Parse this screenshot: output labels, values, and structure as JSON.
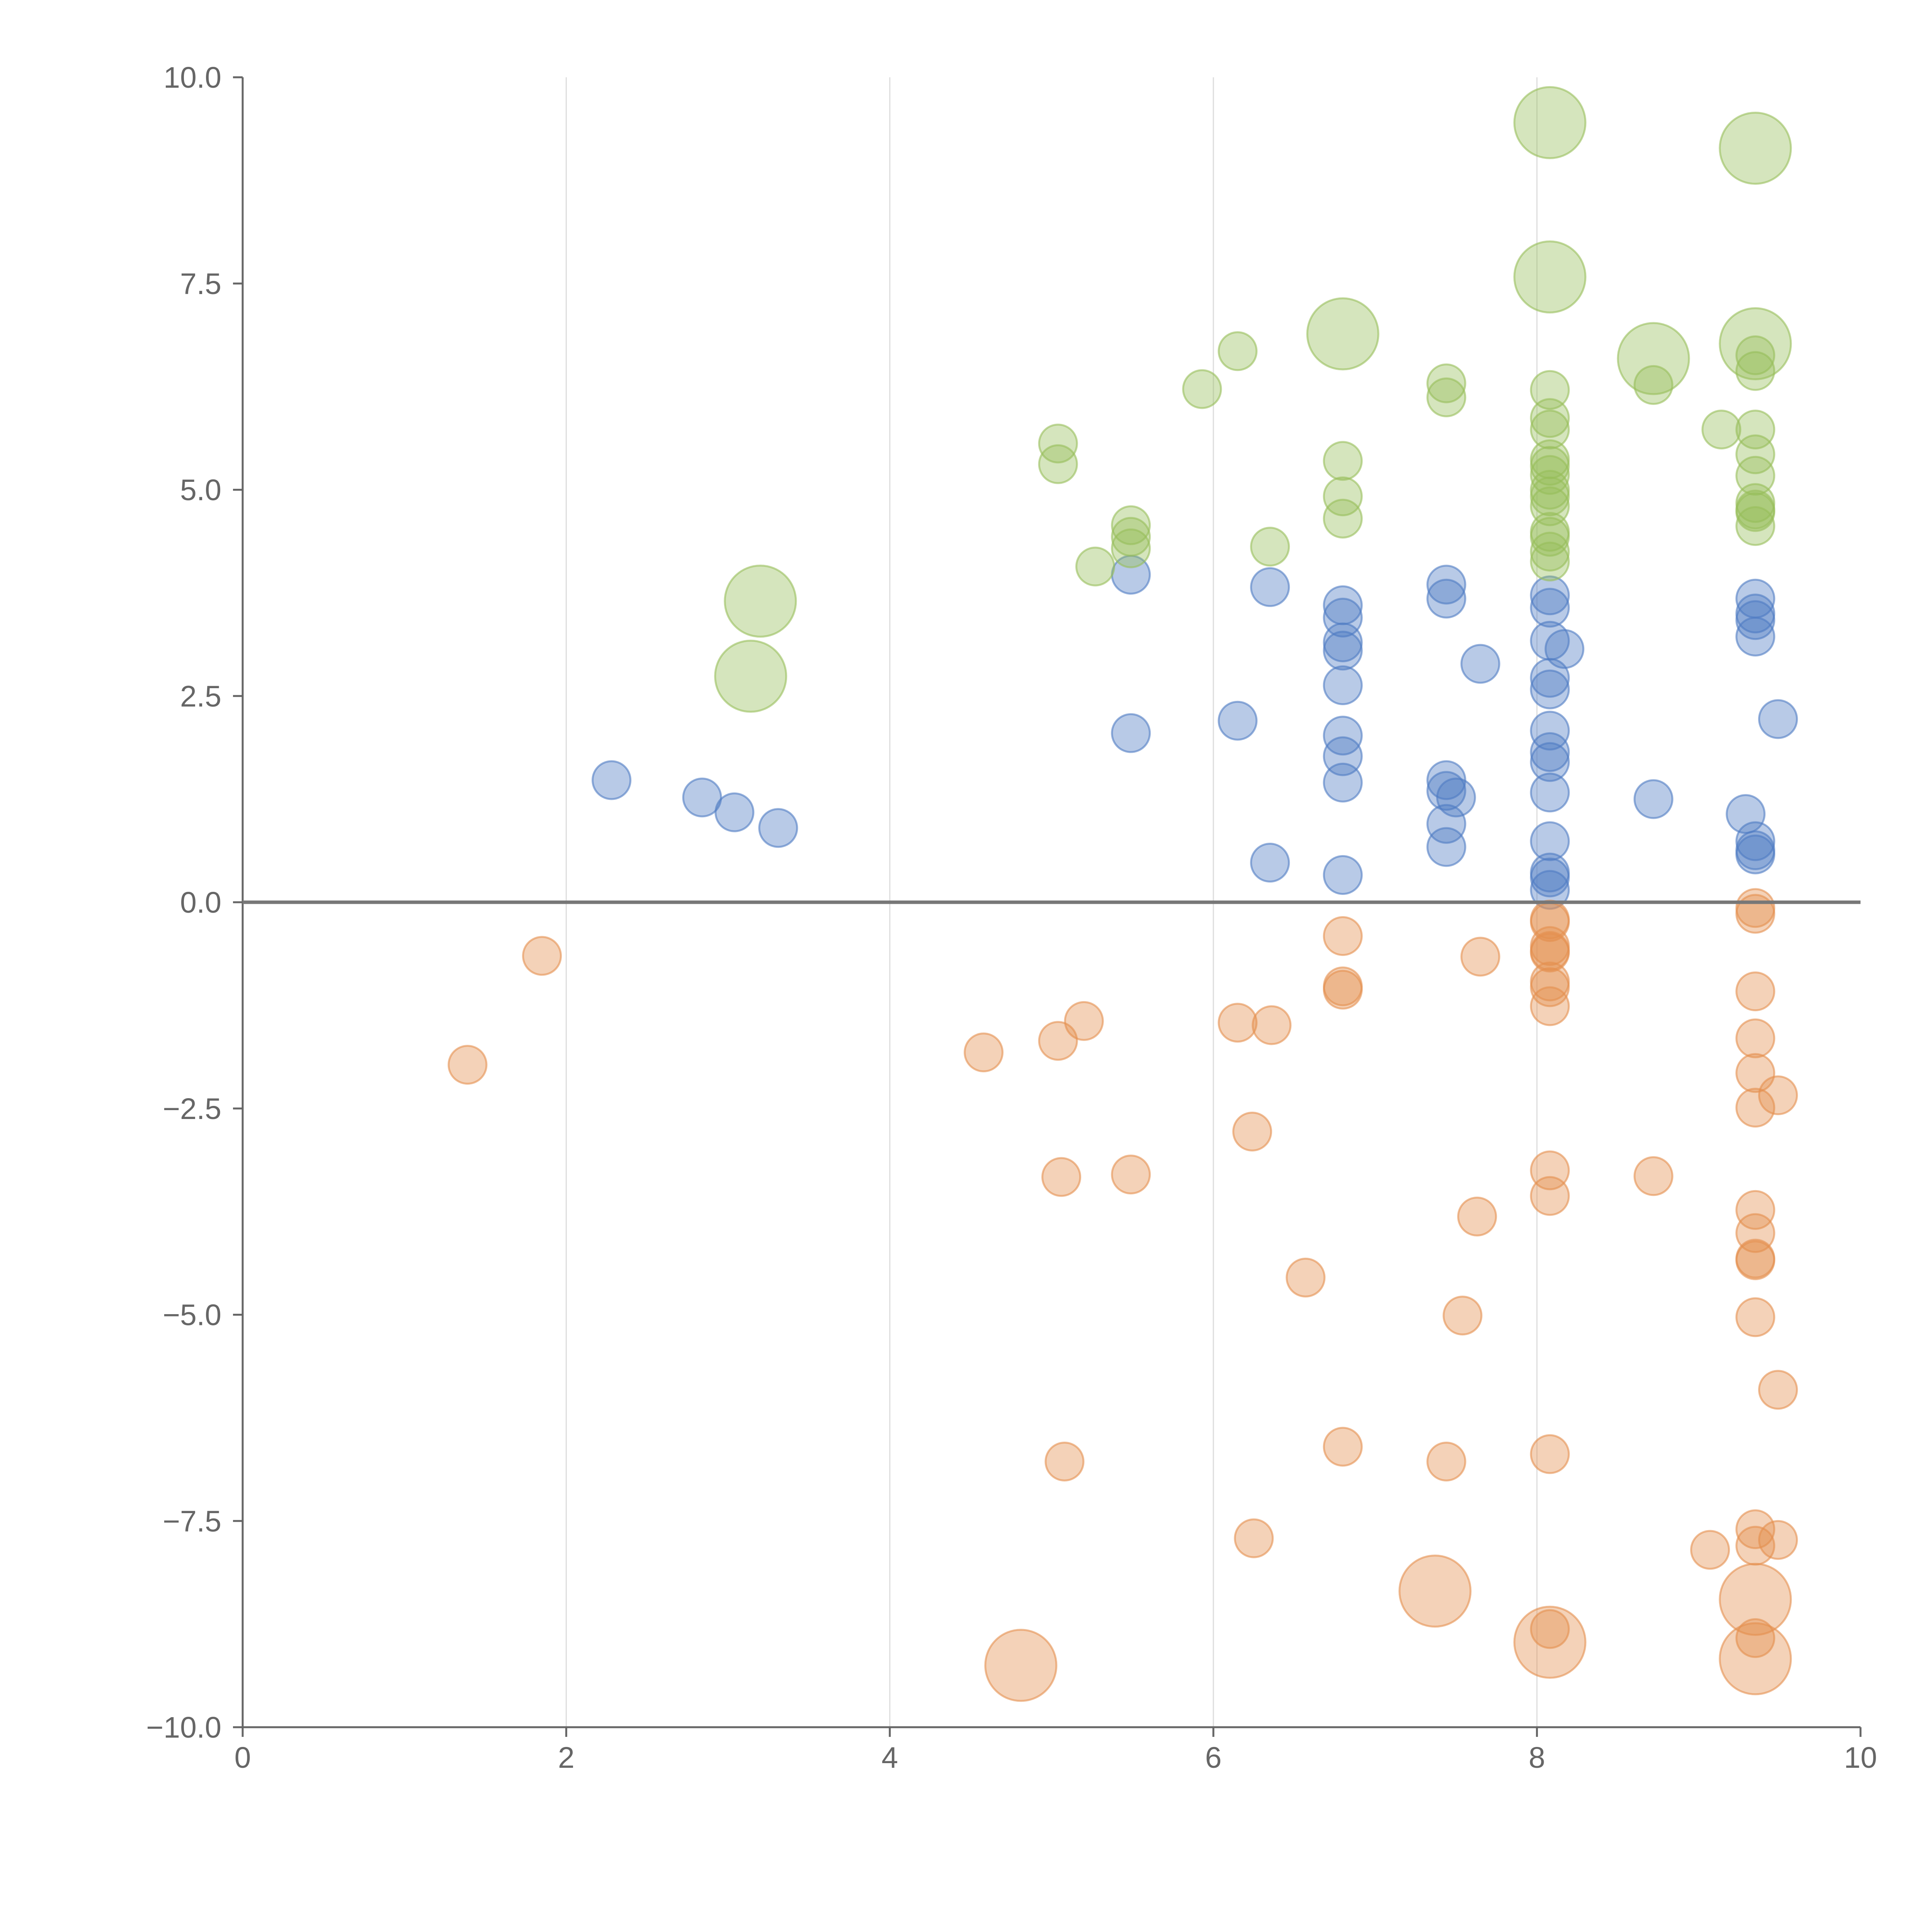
{
  "chart_data": {
    "type": "scatter",
    "title": "",
    "xlabel": "",
    "ylabel": "",
    "xlim": [
      0,
      10
    ],
    "ylim": [
      -10,
      10
    ],
    "x_ticks": [
      "0",
      "2",
      "4",
      "6",
      "8",
      "10"
    ],
    "y_ticks": [
      "10.0",
      "7.5",
      "5.0",
      "2.5",
      "0.0",
      "−2.5",
      "−5.0",
      "−7.5",
      "−10.0"
    ],
    "x_tick_values": [
      0,
      2,
      4,
      6,
      8,
      10
    ],
    "y_tick_values": [
      10,
      7.5,
      5,
      2.5,
      0,
      -2.5,
      -5,
      -7.5,
      -10
    ],
    "vertical_grid": true,
    "horizontal_grid": false,
    "reference_line_y": 0,
    "legend": "none",
    "colors": {
      "blue": "#4E7BC3",
      "orange": "#E48F4E",
      "green": "#97BE5A",
      "axis": "#666666",
      "grid": "#DDDDDD",
      "zero_line": "#777777"
    },
    "series": [
      {
        "name": "blue",
        "size": "small",
        "points": [
          [
            2.28,
            1.48
          ],
          [
            2.84,
            1.27
          ],
          [
            3.04,
            1.09
          ],
          [
            3.31,
            0.9
          ],
          [
            5.49,
            3.97
          ],
          [
            5.49,
            2.05
          ],
          [
            6.15,
            2.2
          ],
          [
            6.35,
            3.82
          ],
          [
            6.35,
            0.48
          ],
          [
            6.8,
            3.6
          ],
          [
            6.8,
            3.45
          ],
          [
            6.8,
            3.15
          ],
          [
            6.8,
            3.05
          ],
          [
            6.8,
            2.63
          ],
          [
            6.8,
            2.02
          ],
          [
            6.8,
            1.77
          ],
          [
            6.8,
            1.45
          ],
          [
            6.8,
            0.33
          ],
          [
            7.44,
            3.85
          ],
          [
            7.44,
            3.68
          ],
          [
            7.44,
            1.48
          ],
          [
            7.44,
            1.35
          ],
          [
            7.5,
            1.27
          ],
          [
            7.44,
            0.95
          ],
          [
            7.44,
            0.67
          ],
          [
            7.65,
            2.89
          ],
          [
            8.08,
            3.72
          ],
          [
            8.08,
            3.57
          ],
          [
            8.08,
            3.17
          ],
          [
            8.17,
            3.07
          ],
          [
            8.08,
            2.72
          ],
          [
            8.08,
            2.58
          ],
          [
            8.08,
            2.08
          ],
          [
            8.08,
            1.82
          ],
          [
            8.08,
            1.7
          ],
          [
            8.08,
            1.33
          ],
          [
            8.08,
            0.74
          ],
          [
            8.08,
            0.36
          ],
          [
            8.08,
            0.3
          ],
          [
            8.08,
            0.15
          ],
          [
            8.72,
            1.25
          ],
          [
            9.29,
            1.07
          ],
          [
            9.35,
            3.68
          ],
          [
            9.35,
            3.5
          ],
          [
            9.35,
            3.42
          ],
          [
            9.35,
            3.22
          ],
          [
            9.35,
            0.74
          ],
          [
            9.35,
            0.63
          ],
          [
            9.35,
            0.58
          ],
          [
            9.49,
            2.22
          ]
        ]
      },
      {
        "name": "orange",
        "size": "small",
        "points": [
          [
            1.39,
            -1.97
          ],
          [
            1.85,
            -0.65
          ],
          [
            4.58,
            -1.82
          ],
          [
            5.04,
            -1.68
          ],
          [
            5.2,
            -1.44
          ],
          [
            5.06,
            -3.33
          ],
          [
            5.08,
            -6.78
          ],
          [
            5.49,
            -3.3
          ],
          [
            6.15,
            -1.46
          ],
          [
            6.36,
            -1.49
          ],
          [
            6.24,
            -2.78
          ],
          [
            6.57,
            -4.55
          ],
          [
            6.25,
            -7.71
          ],
          [
            6.8,
            -0.41
          ],
          [
            6.8,
            -1.02
          ],
          [
            6.8,
            -1.06
          ],
          [
            6.8,
            -6.6
          ],
          [
            7.44,
            -6.78
          ],
          [
            7.54,
            -5.01
          ],
          [
            7.63,
            -3.81
          ],
          [
            7.65,
            -0.66
          ],
          [
            8.08,
            -0.21
          ],
          [
            8.08,
            -0.24
          ],
          [
            8.08,
            -0.53
          ],
          [
            8.08,
            -0.59
          ],
          [
            8.08,
            -0.61
          ],
          [
            8.08,
            -0.96
          ],
          [
            8.08,
            -1.03
          ],
          [
            8.08,
            -1.26
          ],
          [
            8.08,
            -3.25
          ],
          [
            8.08,
            -3.56
          ],
          [
            8.08,
            -6.69
          ],
          [
            8.08,
            -8.81
          ],
          [
            8.72,
            -3.32
          ],
          [
            9.07,
            -7.85
          ],
          [
            9.35,
            -0.07
          ],
          [
            9.35,
            -0.14
          ],
          [
            9.35,
            -1.08
          ],
          [
            9.35,
            -1.65
          ],
          [
            9.35,
            -2.07
          ],
          [
            9.35,
            -2.49
          ],
          [
            9.35,
            -3.73
          ],
          [
            9.35,
            -4.01
          ],
          [
            9.35,
            -4.32
          ],
          [
            9.35,
            -4.34
          ],
          [
            9.35,
            -5.03
          ],
          [
            9.35,
            -7.6
          ],
          [
            9.35,
            -7.8
          ],
          [
            9.35,
            -8.92
          ],
          [
            9.49,
            -2.34
          ],
          [
            9.49,
            -5.91
          ],
          [
            9.49,
            -7.73
          ]
        ]
      },
      {
        "name": "green",
        "size": "small",
        "points": [
          [
            5.04,
            5.56
          ],
          [
            5.04,
            5.31
          ],
          [
            5.27,
            4.07
          ],
          [
            5.49,
            4.57
          ],
          [
            5.49,
            4.43
          ],
          [
            5.49,
            4.29
          ],
          [
            5.93,
            6.22
          ],
          [
            6.15,
            6.68
          ],
          [
            6.35,
            4.31
          ],
          [
            6.8,
            5.35
          ],
          [
            6.8,
            4.92
          ],
          [
            6.8,
            4.65
          ],
          [
            7.44,
            6.29
          ],
          [
            7.44,
            6.12
          ],
          [
            8.08,
            6.21
          ],
          [
            8.08,
            5.87
          ],
          [
            8.08,
            5.73
          ],
          [
            8.08,
            5.37
          ],
          [
            8.08,
            5.29
          ],
          [
            8.08,
            5.18
          ],
          [
            8.08,
            5.0
          ],
          [
            8.08,
            4.92
          ],
          [
            8.08,
            4.8
          ],
          [
            8.08,
            4.49
          ],
          [
            8.08,
            4.43
          ],
          [
            8.08,
            4.25
          ],
          [
            8.08,
            4.13
          ],
          [
            8.72,
            6.27
          ],
          [
            9.14,
            5.73
          ],
          [
            9.35,
            6.63
          ],
          [
            9.35,
            6.44
          ],
          [
            9.35,
            5.73
          ],
          [
            9.35,
            5.43
          ],
          [
            9.35,
            5.17
          ],
          [
            9.35,
            4.84
          ],
          [
            9.35,
            4.76
          ],
          [
            9.35,
            4.73
          ],
          [
            9.35,
            4.56
          ]
        ]
      },
      {
        "name": "green-large",
        "size": "large",
        "points": [
          [
            3.2,
            3.65
          ],
          [
            3.14,
            2.74
          ],
          [
            6.8,
            6.89
          ],
          [
            8.08,
            9.45
          ],
          [
            8.08,
            7.58
          ],
          [
            8.72,
            6.59
          ],
          [
            9.35,
            9.14
          ],
          [
            9.35,
            6.77
          ]
        ]
      },
      {
        "name": "orange-large",
        "size": "large",
        "points": [
          [
            4.81,
            -9.25
          ],
          [
            7.37,
            -8.35
          ],
          [
            8.08,
            -8.97
          ],
          [
            9.35,
            -8.45
          ],
          [
            9.35,
            -9.17
          ]
        ]
      }
    ]
  }
}
